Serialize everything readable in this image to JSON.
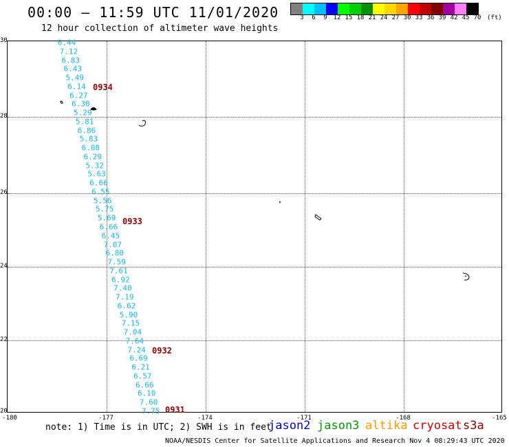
{
  "header": {
    "title": "00:00 – 11:59 UTC 11/01/2020",
    "subtitle": "12 hour collection of altimeter wave heights"
  },
  "legend": {
    "colors": [
      "#808080",
      "#00ffff",
      "#00bfff",
      "#0000ff",
      "#00ff00",
      "#00d000",
      "#009000",
      "#ffff00",
      "#ffd700",
      "#ffa500",
      "#ff0000",
      "#c00000",
      "#800000",
      "#a000a0",
      "#ff80ff",
      "#000000"
    ],
    "labels": [
      "3",
      "6",
      "9",
      "12",
      "15",
      "18",
      "21",
      "24",
      "27",
      "30",
      "33",
      "36",
      "39",
      "42",
      "45",
      "70"
    ],
    "unit": "(ft)"
  },
  "axes": {
    "lat_labels": [
      "30",
      "28",
      "26",
      "24",
      "22",
      "20"
    ],
    "lon_labels": [
      "-180",
      "-177",
      "-174",
      "-171",
      "-168",
      "-165"
    ]
  },
  "swh_values": [
    "6.44",
    "7.12",
    "6.83",
    "6.43",
    "5.49",
    "6.14",
    "6.27",
    "6.30",
    "5.29",
    "5.81",
    "6.86",
    "5.83",
    "6.08",
    "6.29",
    "5.32",
    "5.63",
    "6.66",
    "6.55",
    "5.56",
    "5.75",
    "5.69",
    "6.66",
    "6.45",
    "7.07",
    "6.80",
    "7.59",
    "7.61",
    "6.92",
    "7.40",
    "7.19",
    "6.62",
    "5.90",
    "7.15",
    "7.04",
    "7.64",
    "7.24",
    "6.69",
    "6.21",
    "6.57",
    "6.66",
    "6.10",
    "7.60",
    "7.75"
  ],
  "time_labels": [
    "0934",
    "0933",
    "0932",
    "0931"
  ],
  "footer": {
    "note": "note: 1) Time is in UTC; 2) SWH is in feet",
    "satellites": [
      {
        "name": "jason2",
        "color": "#0000cc"
      },
      {
        "name": "jason3",
        "color": "#009900"
      },
      {
        "name": "altika",
        "color": "#ff9900"
      },
      {
        "name": "cryosat",
        "color": "#cc0000"
      },
      {
        "name": "s3a",
        "color": "#800000"
      }
    ],
    "credit": "NOAA/NESDIS Center for Satellite Applications and Research   Nov  4 08:29:43 UTC 2020"
  }
}
